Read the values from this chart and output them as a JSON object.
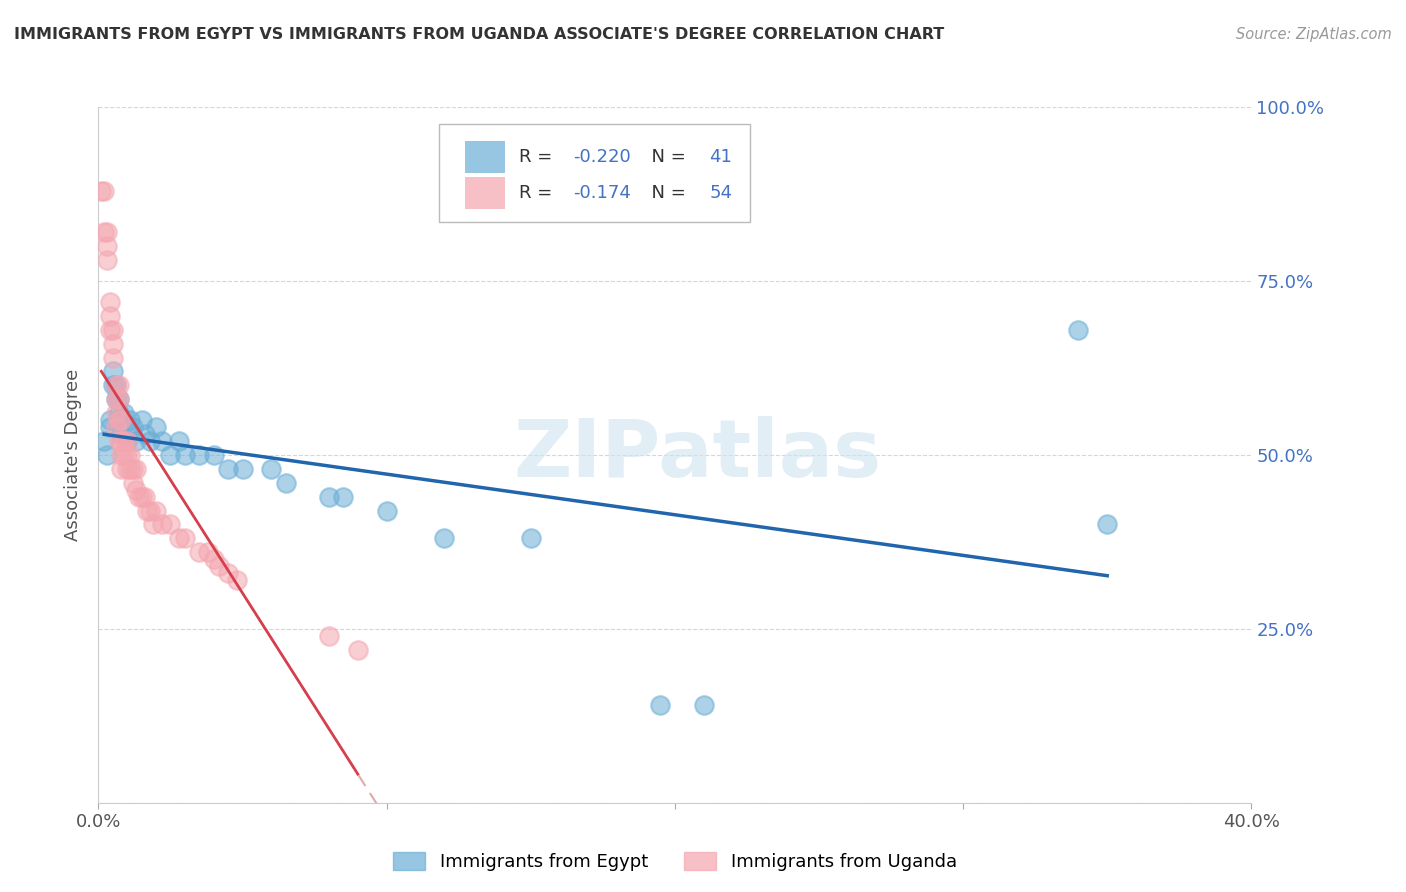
{
  "title": "IMMIGRANTS FROM EGYPT VS IMMIGRANTS FROM UGANDA ASSOCIATE'S DEGREE CORRELATION CHART",
  "source": "Source: ZipAtlas.com",
  "ylabel": "Associate's Degree",
  "xlim": [
    0.0,
    0.4
  ],
  "ylim": [
    0.0,
    1.0
  ],
  "xtick_positions": [
    0.0,
    0.1,
    0.2,
    0.3,
    0.4
  ],
  "xticklabels": [
    "0.0%",
    "",
    "",
    "",
    "40.0%"
  ],
  "ytick_positions": [
    0.0,
    0.25,
    0.5,
    0.75,
    1.0
  ],
  "yticklabels_right": [
    "",
    "25.0%",
    "50.0%",
    "75.0%",
    "100.0%"
  ],
  "egypt_color": "#6baed6",
  "egypt_edge": "#4393c3",
  "uganda_color": "#f4a6b0",
  "uganda_edge": "#e06080",
  "egypt_line_color": "#2166ac",
  "uganda_line_color": "#d6404e",
  "uganda_dashed_color": "#ddaaaa",
  "egypt_R": -0.22,
  "egypt_N": 41,
  "uganda_R": -0.174,
  "uganda_N": 54,
  "watermark": "ZIPatlas",
  "legend_egypt_label": "Immigrants from Egypt",
  "legend_uganda_label": "Immigrants from Uganda",
  "egypt_scatter_x": [
    0.002,
    0.003,
    0.004,
    0.004,
    0.005,
    0.005,
    0.006,
    0.006,
    0.007,
    0.007,
    0.008,
    0.008,
    0.009,
    0.01,
    0.01,
    0.011,
    0.012,
    0.013,
    0.015,
    0.016,
    0.018,
    0.02,
    0.022,
    0.025,
    0.028,
    0.03,
    0.035,
    0.04,
    0.045,
    0.05,
    0.06,
    0.065,
    0.08,
    0.085,
    0.1,
    0.12,
    0.15,
    0.195,
    0.21,
    0.34,
    0.35
  ],
  "egypt_scatter_y": [
    0.52,
    0.5,
    0.55,
    0.54,
    0.6,
    0.62,
    0.6,
    0.58,
    0.58,
    0.56,
    0.55,
    0.53,
    0.56,
    0.54,
    0.52,
    0.55,
    0.54,
    0.52,
    0.55,
    0.53,
    0.52,
    0.54,
    0.52,
    0.5,
    0.52,
    0.5,
    0.5,
    0.5,
    0.48,
    0.48,
    0.48,
    0.46,
    0.44,
    0.44,
    0.42,
    0.38,
    0.38,
    0.14,
    0.14,
    0.68,
    0.4
  ],
  "uganda_scatter_x": [
    0.001,
    0.002,
    0.002,
    0.003,
    0.003,
    0.003,
    0.004,
    0.004,
    0.004,
    0.005,
    0.005,
    0.005,
    0.006,
    0.006,
    0.006,
    0.006,
    0.007,
    0.007,
    0.007,
    0.007,
    0.008,
    0.008,
    0.008,
    0.008,
    0.009,
    0.009,
    0.01,
    0.01,
    0.01,
    0.011,
    0.011,
    0.012,
    0.012,
    0.013,
    0.013,
    0.014,
    0.015,
    0.016,
    0.017,
    0.018,
    0.019,
    0.02,
    0.022,
    0.025,
    0.028,
    0.03,
    0.035,
    0.038,
    0.04,
    0.042,
    0.045,
    0.048,
    0.08,
    0.09
  ],
  "uganda_scatter_y": [
    0.88,
    0.88,
    0.82,
    0.82,
    0.8,
    0.78,
    0.72,
    0.7,
    0.68,
    0.68,
    0.66,
    0.64,
    0.6,
    0.58,
    0.56,
    0.54,
    0.6,
    0.58,
    0.55,
    0.52,
    0.55,
    0.52,
    0.5,
    0.48,
    0.52,
    0.5,
    0.52,
    0.5,
    0.48,
    0.5,
    0.48,
    0.48,
    0.46,
    0.48,
    0.45,
    0.44,
    0.44,
    0.44,
    0.42,
    0.42,
    0.4,
    0.42,
    0.4,
    0.4,
    0.38,
    0.38,
    0.36,
    0.36,
    0.35,
    0.34,
    0.33,
    0.32,
    0.24,
    0.22
  ]
}
